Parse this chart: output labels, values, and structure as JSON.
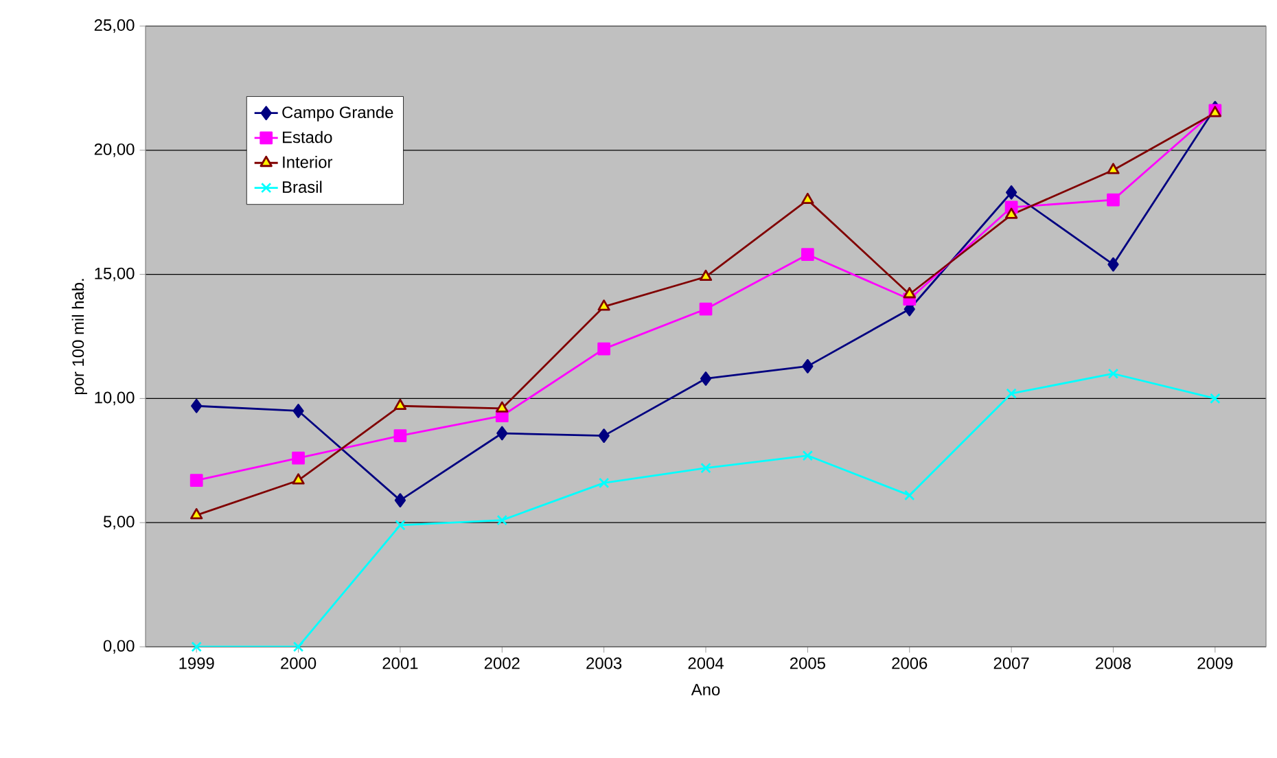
{
  "chart_data": {
    "type": "line",
    "xlabel": "Ano",
    "ylabel": "por 100 mil hab.",
    "categories": [
      "1999",
      "2000",
      "2001",
      "2002",
      "2003",
      "2004",
      "2005",
      "2006",
      "2007",
      "2008",
      "2009"
    ],
    "series": [
      {
        "name": "Campo Grande",
        "color": "#000080",
        "marker": "diamond",
        "values": [
          9.7,
          9.5,
          5.9,
          8.6,
          8.5,
          10.8,
          11.3,
          13.6,
          18.3,
          15.4,
          21.7
        ]
      },
      {
        "name": "Estado",
        "color": "#ff00ff",
        "marker": "square",
        "values": [
          6.7,
          7.6,
          8.5,
          9.3,
          12.0,
          13.6,
          15.8,
          14.0,
          17.7,
          18.0,
          21.6
        ]
      },
      {
        "name": "Interior",
        "color": "#800000",
        "marker": "triangle",
        "values": [
          5.3,
          6.7,
          9.7,
          9.6,
          13.7,
          14.9,
          18.0,
          14.2,
          17.4,
          19.2,
          21.5
        ]
      },
      {
        "name": "Brasil",
        "color": "#00ffff",
        "marker": "cross",
        "values": [
          0.0,
          0.0,
          4.9,
          5.1,
          6.6,
          7.2,
          7.7,
          6.1,
          10.2,
          11.0,
          10.0
        ]
      }
    ],
    "ylim": [
      0,
      25
    ],
    "yticks": [
      {
        "value": 0,
        "label": "0,00"
      },
      {
        "value": 5,
        "label": "5,00"
      },
      {
        "value": 10,
        "label": "10,00"
      },
      {
        "value": 15,
        "label": "15,00"
      },
      {
        "value": 20,
        "label": "20,00"
      },
      {
        "value": 25,
        "label": "25,00"
      }
    ],
    "grid": "y",
    "legend": "top left",
    "line_style": "solid"
  }
}
